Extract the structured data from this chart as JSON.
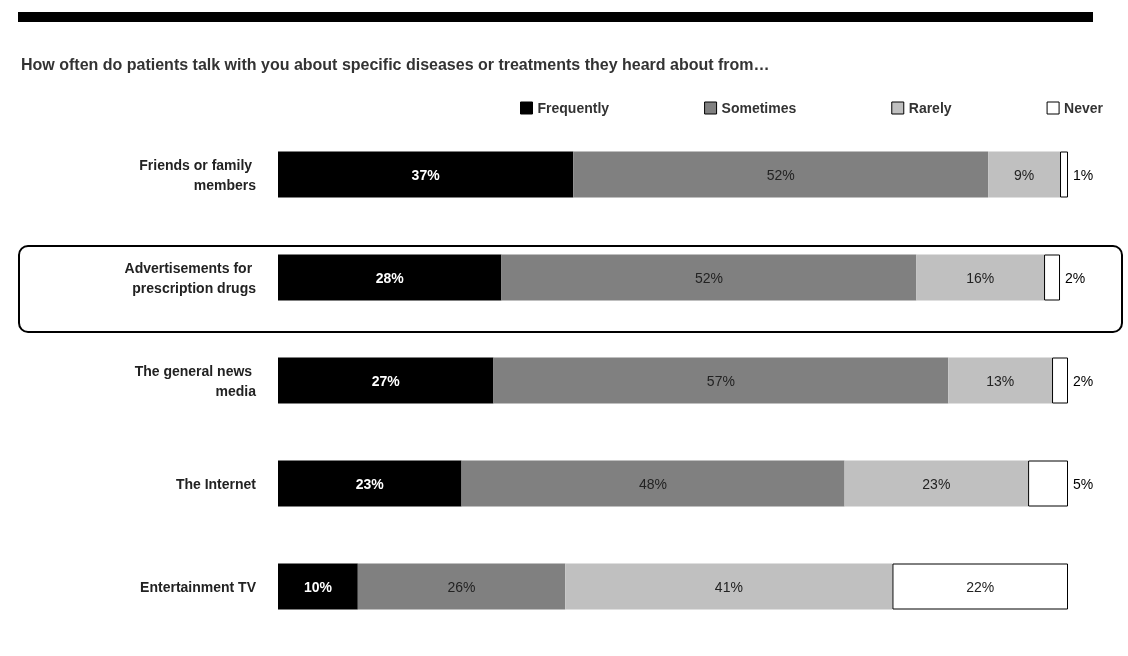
{
  "chart_data": {
    "type": "bar",
    "orientation": "horizontal",
    "stacked": true,
    "legend": "top right",
    "title": "How often do patients talk with you about specific diseases or treatments they heard about from…",
    "categories": [
      "Friends or family members",
      "Advertisements for prescription drugs",
      "The general news media",
      "The Internet",
      "Entertainment TV"
    ],
    "series": [
      {
        "name": "Frequently",
        "color": "#000000",
        "values": [
          37,
          28,
          27,
          23,
          10
        ],
        "value_labels": [
          "37%",
          "28%",
          "27%",
          "23%",
          "10%"
        ]
      },
      {
        "name": "Sometimes",
        "color": "#808080",
        "values": [
          52,
          52,
          57,
          48,
          26
        ],
        "value_labels": [
          "52%",
          "52%",
          "57%",
          "48%",
          "26%"
        ]
      },
      {
        "name": "Rarely",
        "color": "#c0c0c0",
        "values": [
          9,
          16,
          13,
          23,
          41
        ],
        "value_labels": [
          "9%",
          "16%",
          "13%",
          "23%",
          "41%"
        ]
      },
      {
        "name": "Never",
        "color": "#ffffff",
        "values": [
          1,
          2,
          2,
          5,
          22
        ],
        "value_labels": [
          "1%",
          "2%",
          "2%",
          "5%",
          "22%"
        ]
      }
    ]
  }
}
